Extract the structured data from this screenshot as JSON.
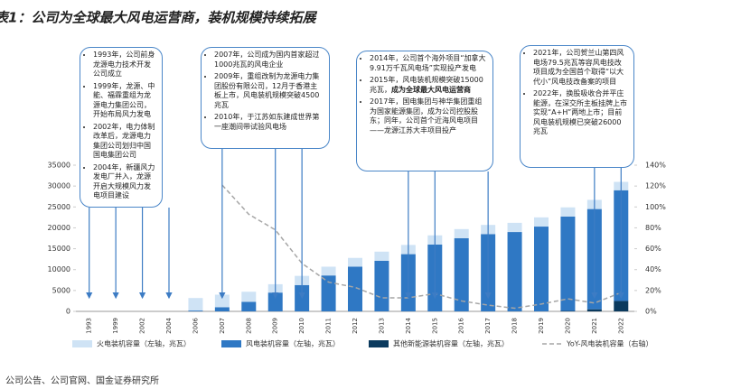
{
  "chart_data": {
    "type": "bar",
    "title": "表1：公司为全球最大风电运营商，装机规模持续拓展",
    "source": "公司公告、公司官网、国金证券研究所",
    "categories": [
      "1993",
      "1999",
      "2002",
      "2004",
      "2006",
      "2007",
      "2008",
      "2009",
      "2010",
      "2011",
      "2012",
      "2013",
      "2014",
      "2015",
      "2016",
      "2017",
      "2018",
      "2019",
      "2020",
      "2021",
      "2022"
    ],
    "series": [
      {
        "name": "火电装机容量（左轴，兆瓦）",
        "color": "#cfe3f5",
        "values": [
          0,
          0,
          0,
          0,
          3000,
          3000,
          2400,
          2000,
          2200,
          2100,
          2100,
          2200,
          2200,
          2200,
          2200,
          2200,
          2200,
          2200,
          2200,
          2200,
          2000
        ]
      },
      {
        "name": "风电装机容量（左轴，兆瓦）",
        "color": "#2f78c4",
        "values": [
          0,
          0,
          0,
          0,
          200,
          1000,
          2300,
          4500,
          6300,
          8600,
          10700,
          12100,
          13700,
          16000,
          17500,
          18500,
          19000,
          20300,
          22600,
          24000,
          26500
        ]
      },
      {
        "name": "其他新能源装机容量（左轴，兆瓦）",
        "color": "#0b3a5e",
        "values": [
          0,
          0,
          0,
          0,
          0,
          0,
          0,
          0,
          0,
          0,
          0,
          0,
          0,
          0,
          0,
          0,
          0,
          0,
          100,
          500,
          2500
        ]
      },
      {
        "name": "YoY-风电装机容量（右轴）",
        "color": "#a6a6a6",
        "type": "line",
        "axis": "y2",
        "values": [
          null,
          null,
          null,
          null,
          null,
          121,
          93,
          78,
          46,
          28,
          23,
          13,
          13,
          17,
          10,
          6,
          3,
          7,
          12,
          8,
          18
        ]
      }
    ],
    "ylim": [
      0,
      35000
    ],
    "yticks": [
      0,
      5000,
      10000,
      15000,
      20000,
      25000,
      30000,
      35000
    ],
    "y2lim": [
      0,
      140
    ],
    "y2ticks": [
      {
        "value": 0,
        "label": "0%"
      },
      {
        "value": 20,
        "label": "20%"
      },
      {
        "value": 40,
        "label": "40%"
      },
      {
        "value": 60,
        "label": "60%"
      },
      {
        "value": 80,
        "label": "80%"
      },
      {
        "value": 100,
        "label": "100%"
      },
      {
        "value": 120,
        "label": "120%"
      },
      {
        "value": 140,
        "label": "140%"
      }
    ],
    "grid": false,
    "annotations": [
      {
        "items": [
          [
            "1993年，公司前身龙源电力技术开发公司成立"
          ],
          [
            "1999年，龙源、中能、福霖重组为龙源电力集团公司，开始布局风力发电"
          ],
          [
            "2002年，电力体制改革后，龙源电力集团公司划归中国国电集团公司"
          ],
          [
            "2004年，新疆风力发电厂并入，龙源开启大规模风力发电项目建设"
          ]
        ]
      },
      {
        "items": [
          [
            "2007年，公司成为国内首家超过1000兆瓦的风电企业"
          ],
          [
            "2009年，重组改制为龙源电力集团股份有限公司，12月于香港主板上市，风电装机规模突破4500兆瓦"
          ],
          [
            "2010年，于江苏如东建成世界第一座潮间带试验风电场"
          ]
        ]
      },
      {
        "items": [
          [
            "2014年，公司首个海外项目“加拿大9.91万千瓦风电场”实现投产发电"
          ],
          [
            "2015年，风电装机规模突破15000兆瓦，",
            "成为全球最大风电运营商"
          ],
          [
            "2017年，国电集团与神华集团重组为国家能源集团，成为公司控股股东；同年，公司首个近海风电项目——龙源江苏大丰项目投产"
          ]
        ]
      },
      {
        "items": [
          [
            "2021年，公司贺兰山第四风电场79.5兆瓦等容风电技改项目成为全国首个取得“以大代小”风电技改备案的项目"
          ],
          [
            "2022年，换股吸收合并平庄能源，在深交所主板挂牌上市实现“A+H”两地上市；目前风电装机规模已突破26000兆瓦"
          ]
        ]
      }
    ]
  }
}
